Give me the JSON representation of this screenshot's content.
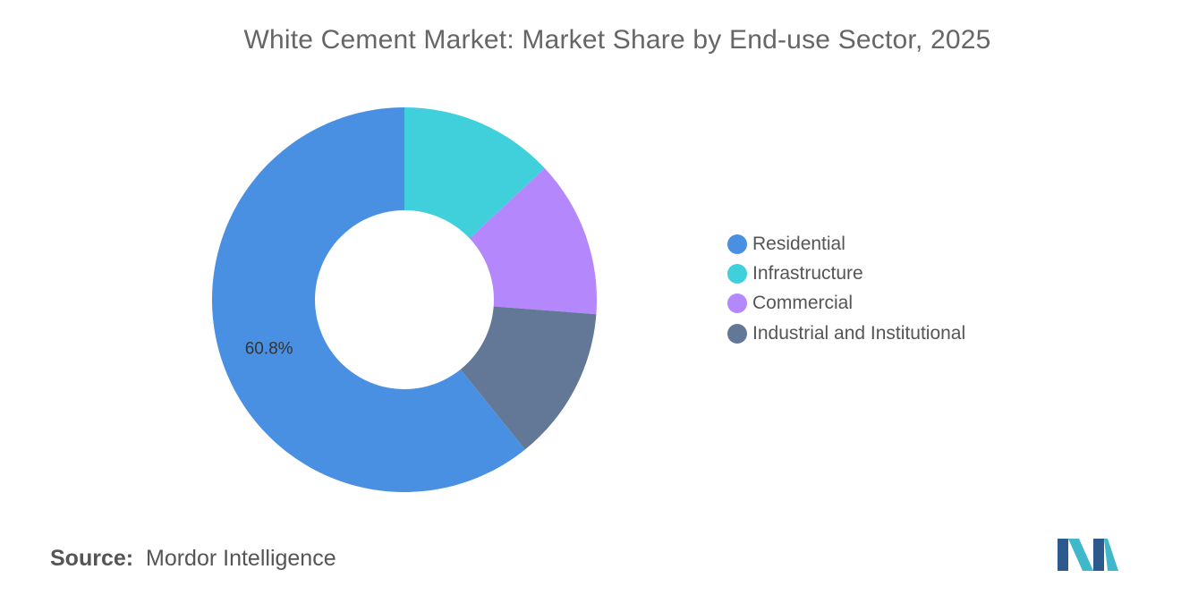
{
  "title": "White Cement Market: Market Share by End-use Sector, 2025",
  "source": {
    "prefix": "Source:",
    "text": "Mordor Intelligence"
  },
  "logo_icon": "mordor-intelligence-logo-icon",
  "chart_data": {
    "type": "pie",
    "variant": "donut",
    "title": "White Cement Market: Market Share by End-use Sector, 2025",
    "legend_position": "right",
    "unit": "%",
    "slices": [
      {
        "name": "Residential",
        "value": 60.8,
        "color": "#4A90E2",
        "label": "60.8%"
      },
      {
        "name": "Infrastructure",
        "value": 13.0,
        "color": "#40D0DB",
        "label": ""
      },
      {
        "name": "Commercial",
        "value": 13.2,
        "color": "#B487FD",
        "label": ""
      },
      {
        "name": "Industrial and Institutional",
        "value": 13.0,
        "color": "#637796",
        "label": ""
      }
    ]
  }
}
